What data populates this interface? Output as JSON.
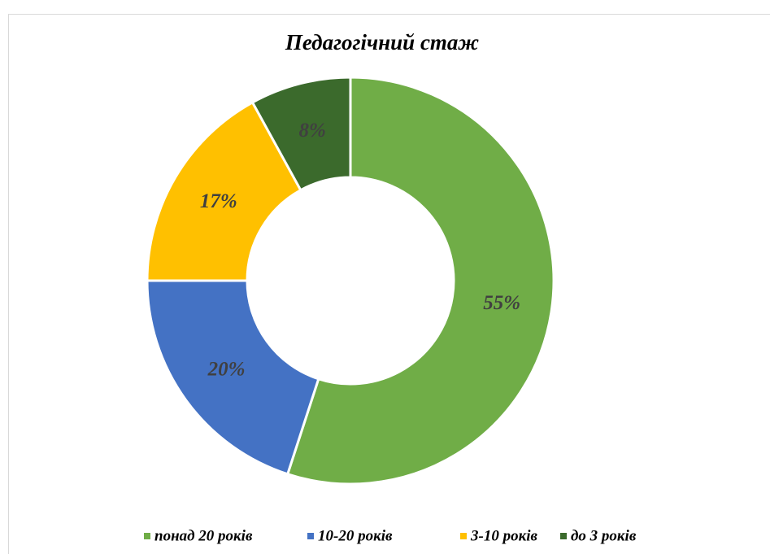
{
  "chart_data": {
    "type": "donut",
    "title": "Педагогічний стаж",
    "categories": [
      "понад 20 років",
      "10-20 років",
      "3-10 років",
      "до 3 років"
    ],
    "values": [
      55,
      20,
      17,
      8
    ],
    "value_labels": [
      "55%",
      "20%",
      "17%",
      "8%"
    ],
    "colors": [
      "#70ad47",
      "#4472c4",
      "#ffc000",
      "#3b6a2c"
    ],
    "legend": "bottom"
  }
}
